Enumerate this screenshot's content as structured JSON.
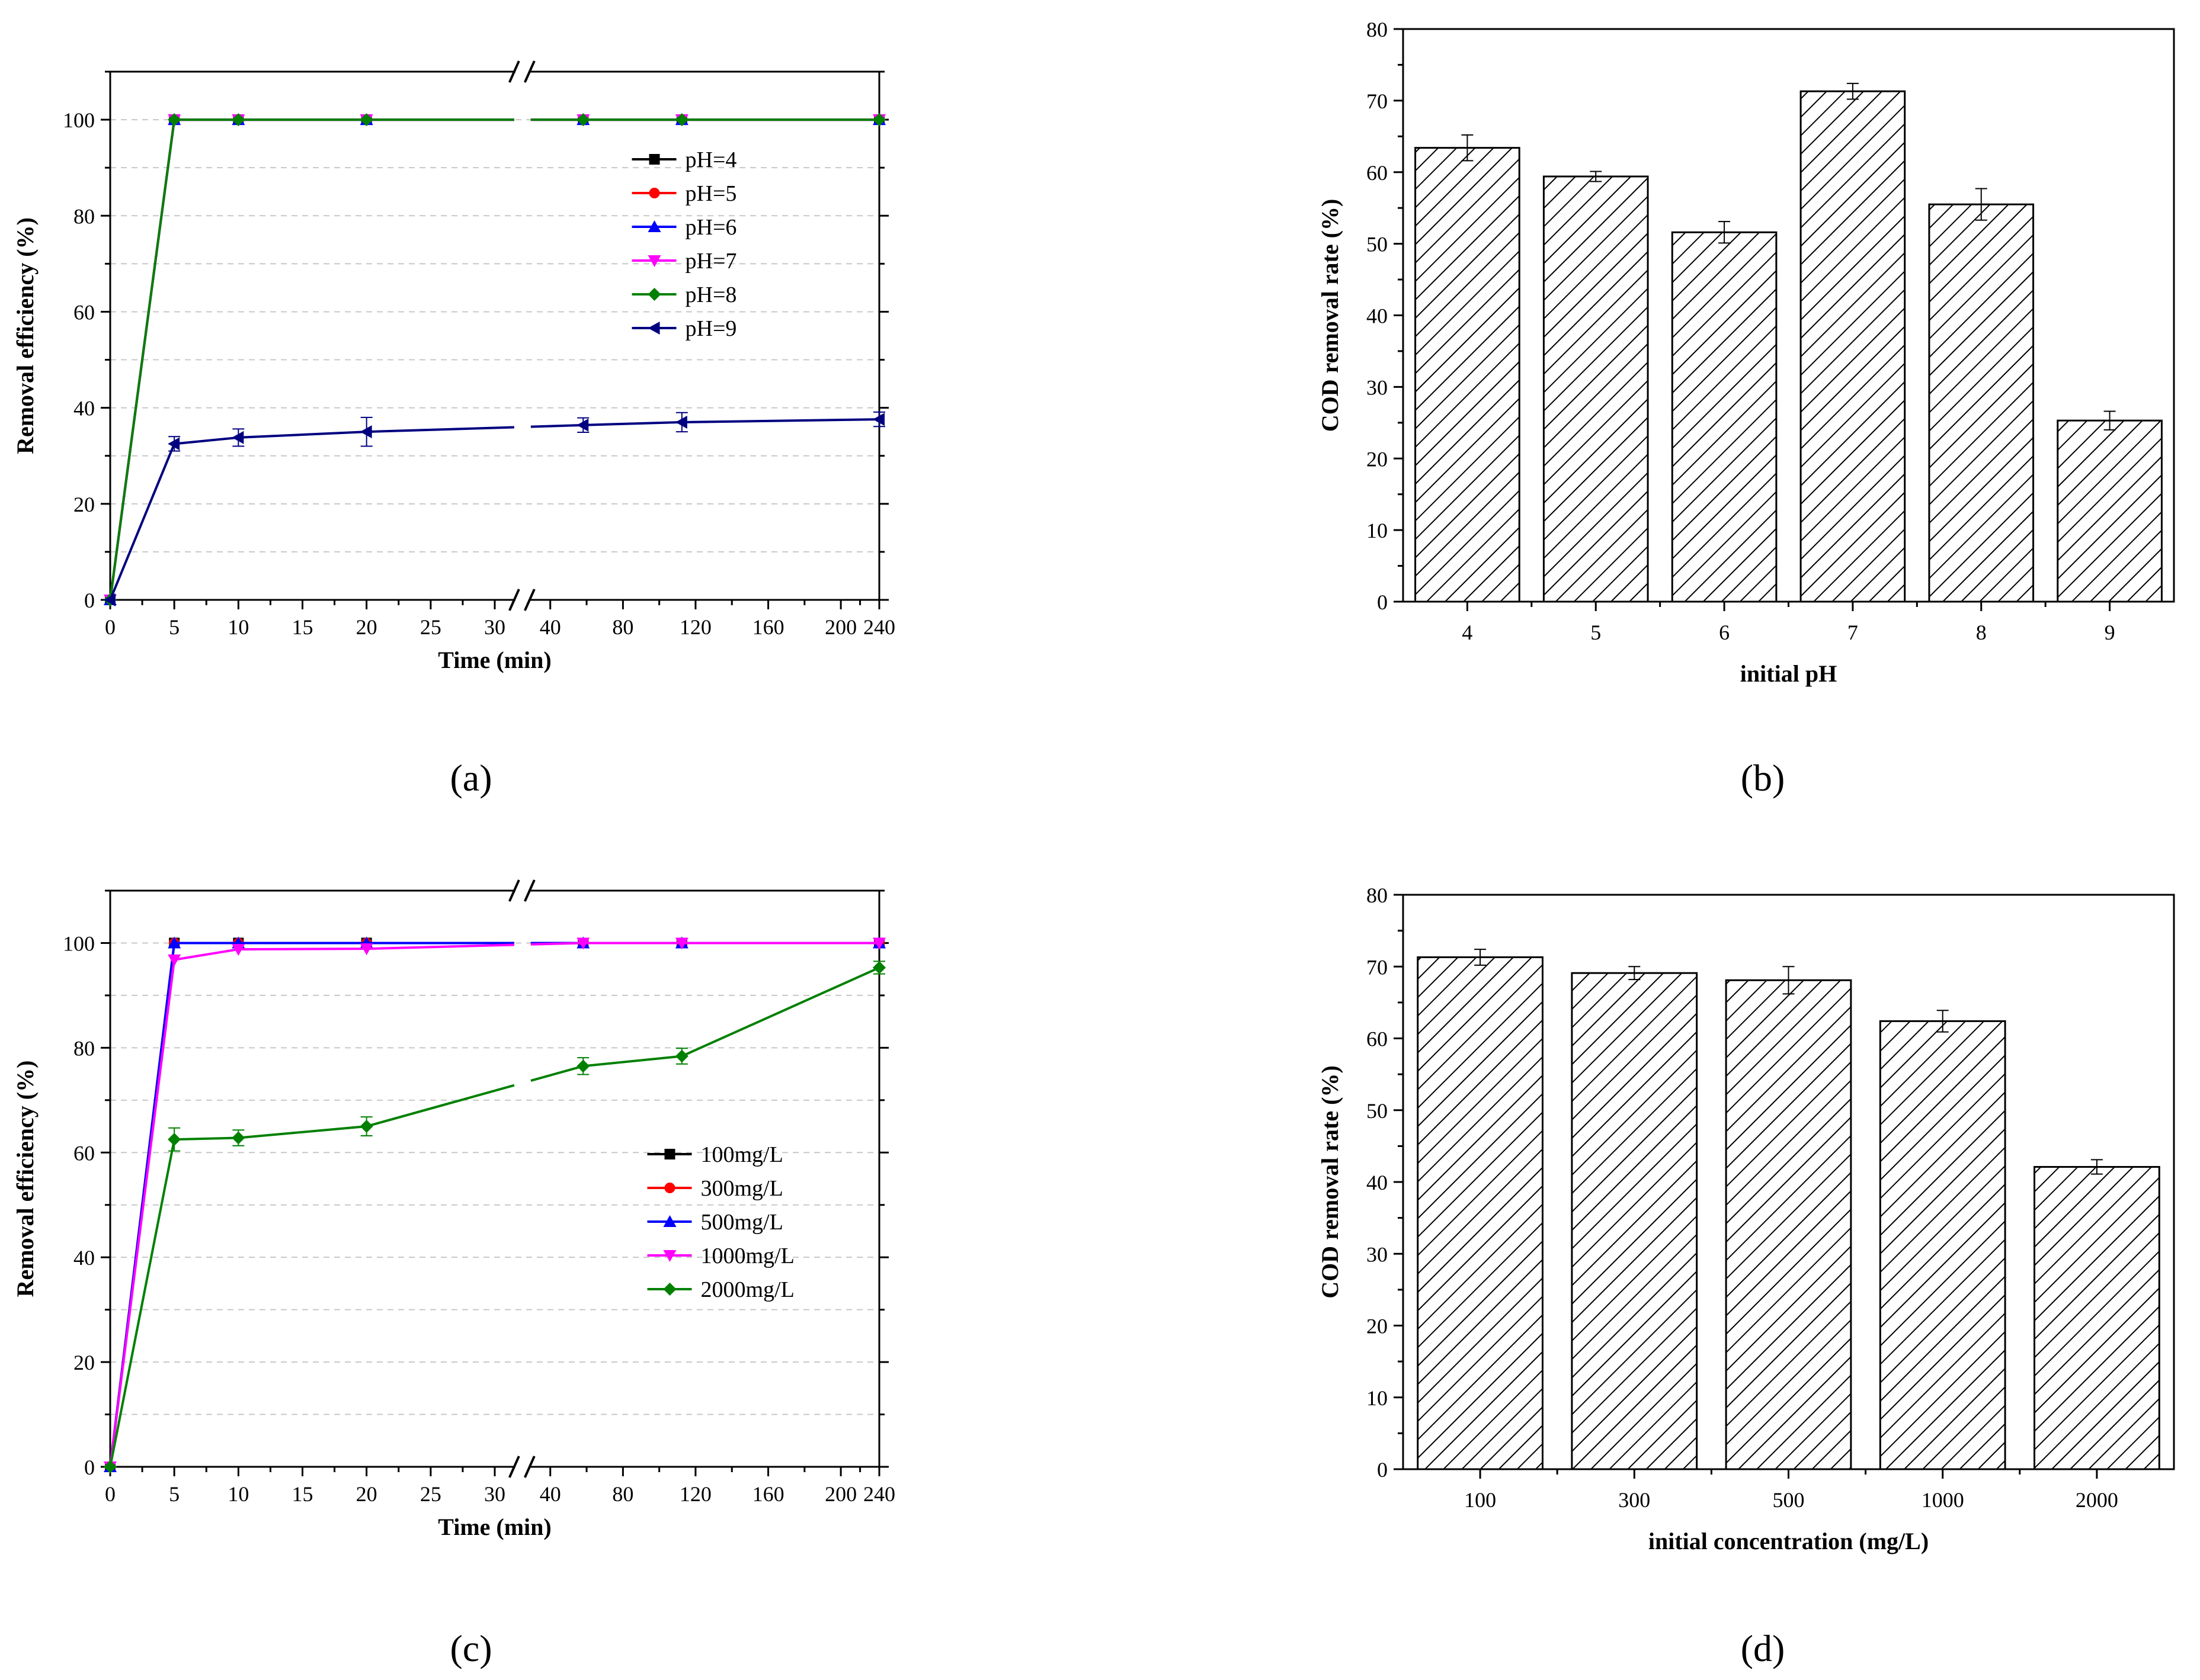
{
  "figure": {
    "captions": {
      "a": "(a)",
      "b": "(b)",
      "c": "(c)",
      "d": "(d)"
    }
  },
  "chart_data": [
    {
      "id": "a",
      "type": "line",
      "xlabel": "Time (min)",
      "ylabel": "Removal efficiency (%)",
      "ylim": [
        0,
        110
      ],
      "yticks": [
        0,
        20,
        40,
        60,
        80,
        100
      ],
      "x_categories": [
        "0",
        "5",
        "10",
        "15",
        "20",
        "25",
        "30",
        "40",
        "80",
        "120",
        "160",
        "200",
        "240"
      ],
      "axis_break_after": "30",
      "grid": true,
      "legend_position": "right",
      "series": [
        {
          "name": "pH=4",
          "color": "#000000",
          "marker": "square",
          "x": [
            0,
            5,
            10,
            20,
            60,
            120,
            240
          ],
          "y": [
            0,
            100,
            100,
            100,
            100,
            100,
            100
          ]
        },
        {
          "name": "pH=5",
          "color": "#ff0000",
          "marker": "circle",
          "x": [
            0,
            5,
            10,
            20,
            60,
            120,
            240
          ],
          "y": [
            0,
            100,
            100,
            100,
            100,
            100,
            100
          ]
        },
        {
          "name": "pH=6",
          "color": "#0000ff",
          "marker": "triangle-up",
          "x": [
            0,
            5,
            10,
            20,
            60,
            120,
            240
          ],
          "y": [
            0,
            100,
            100,
            100,
            100,
            100,
            100
          ]
        },
        {
          "name": "pH=7",
          "color": "#ff00ff",
          "marker": "triangle-down",
          "x": [
            0,
            5,
            10,
            20,
            60,
            120,
            240
          ],
          "y": [
            0,
            100,
            100,
            100,
            100,
            100,
            100
          ]
        },
        {
          "name": "pH=8",
          "color": "#008000",
          "marker": "diamond",
          "x": [
            0,
            5,
            10,
            20,
            60,
            120,
            240
          ],
          "y": [
            0,
            100,
            100,
            100,
            100,
            100,
            100
          ]
        },
        {
          "name": "pH=9",
          "color": "#000080",
          "marker": "triangle-left",
          "x": [
            0,
            5,
            10,
            20,
            60,
            120,
            240
          ],
          "y": [
            0,
            32.5,
            33.8,
            35.0,
            36.4,
            37.0,
            37.6
          ],
          "err": [
            0,
            1.5,
            1.8,
            3.0,
            1.5,
            2.0,
            1.5
          ]
        }
      ]
    },
    {
      "id": "b",
      "type": "bar",
      "xlabel": "initial pH",
      "ylabel": "COD removal rate (%)",
      "ylim": [
        0,
        80
      ],
      "yticks": [
        0,
        10,
        20,
        30,
        40,
        50,
        60,
        70,
        80
      ],
      "categories": [
        "4",
        "5",
        "6",
        "7",
        "8",
        "9"
      ],
      "values": [
        63.4,
        59.4,
        51.6,
        71.3,
        55.5,
        25.3
      ],
      "errors": [
        1.8,
        0.7,
        1.5,
        1.1,
        2.2,
        1.3
      ]
    },
    {
      "id": "c",
      "type": "line",
      "xlabel": "Time (min)",
      "ylabel": "Removal efficiency (%)",
      "ylim": [
        0,
        110
      ],
      "yticks": [
        0,
        20,
        40,
        60,
        80,
        100
      ],
      "x_categories": [
        "0",
        "5",
        "10",
        "15",
        "20",
        "25",
        "30",
        "40",
        "80",
        "120",
        "160",
        "200",
        "240"
      ],
      "axis_break_after": "30",
      "grid": true,
      "legend_position": "right",
      "series": [
        {
          "name": "100mg/L",
          "color": "#000000",
          "marker": "square",
          "x": [
            0,
            5,
            10,
            20,
            60,
            120,
            240
          ],
          "y": [
            0,
            100,
            100,
            100,
            100,
            100,
            100
          ]
        },
        {
          "name": "300mg/L",
          "color": "#ff0000",
          "marker": "circle",
          "x": [
            0,
            5,
            10,
            20,
            60,
            120,
            240
          ],
          "y": [
            0,
            100,
            100,
            100,
            100,
            100,
            100
          ]
        },
        {
          "name": "500mg/L",
          "color": "#0000ff",
          "marker": "triangle-up",
          "x": [
            0,
            5,
            10,
            20,
            60,
            120,
            240
          ],
          "y": [
            0,
            100,
            100,
            100,
            100,
            100,
            100
          ]
        },
        {
          "name": "1000mg/L",
          "color": "#ff00ff",
          "marker": "triangle-down",
          "x": [
            0,
            5,
            10,
            20,
            60,
            120,
            240
          ],
          "y": [
            0,
            96.8,
            98.8,
            98.9,
            100,
            100,
            100
          ]
        },
        {
          "name": "2000mg/L",
          "color": "#008000",
          "marker": "diamond",
          "x": [
            0,
            5,
            10,
            20,
            60,
            120,
            240
          ],
          "y": [
            0,
            62.5,
            62.8,
            65.0,
            76.5,
            78.4,
            95.3
          ],
          "err": [
            0,
            2.2,
            1.5,
            1.8,
            1.6,
            1.5,
            1.2
          ]
        }
      ]
    },
    {
      "id": "d",
      "type": "bar",
      "xlabel": "initial concentration (mg/L)",
      "ylabel": "COD removal rate (%)",
      "ylim": [
        0,
        80
      ],
      "yticks": [
        0,
        10,
        20,
        30,
        40,
        50,
        60,
        70,
        80
      ],
      "categories": [
        "100",
        "300",
        "500",
        "1000",
        "2000"
      ],
      "values": [
        71.3,
        69.1,
        68.1,
        62.4,
        42.1
      ],
      "errors": [
        1.1,
        0.9,
        1.9,
        1.5,
        1.0
      ]
    }
  ]
}
